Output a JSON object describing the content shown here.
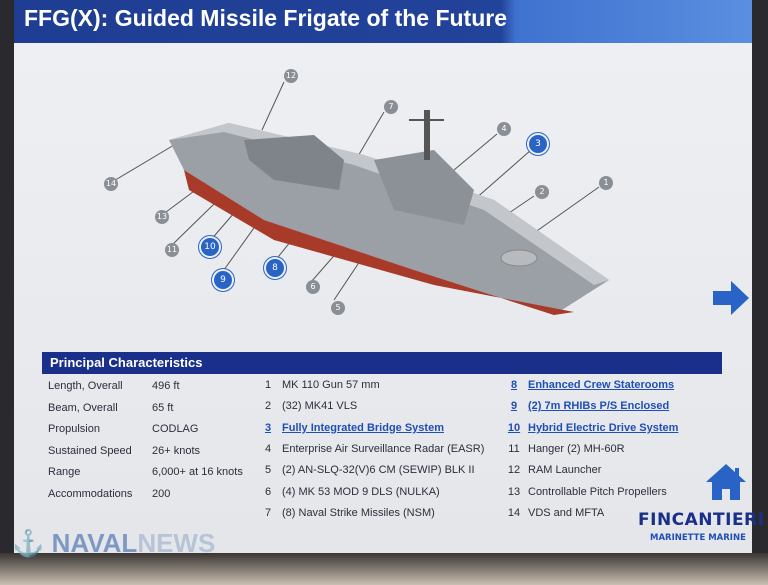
{
  "title": "FFG(X): Guided Missile Frigate of the Future",
  "callouts": [
    {
      "n": "12",
      "style": "gray"
    },
    {
      "n": "7",
      "style": "gray"
    },
    {
      "n": "4",
      "style": "gray"
    },
    {
      "n": "3",
      "style": "blue"
    },
    {
      "n": "2",
      "style": "gray"
    },
    {
      "n": "1",
      "style": "gray"
    },
    {
      "n": "14",
      "style": "gray"
    },
    {
      "n": "13",
      "style": "gray"
    },
    {
      "n": "11",
      "style": "gray"
    },
    {
      "n": "10",
      "style": "blue"
    },
    {
      "n": "9",
      "style": "blue"
    },
    {
      "n": "8",
      "style": "blue"
    },
    {
      "n": "6",
      "style": "gray"
    },
    {
      "n": "5",
      "style": "gray"
    }
  ],
  "characteristics": {
    "header": "Principal Characteristics",
    "specs": [
      {
        "label": "Length, Overall",
        "value": "496 ft"
      },
      {
        "label": "Beam, Overall",
        "value": "65 ft"
      },
      {
        "label": "Propulsion",
        "value": "CODLAG"
      },
      {
        "label": "Sustained Speed",
        "value": "26+ knots"
      },
      {
        "label": "Range",
        "value": "6,000+ at 16 knots"
      },
      {
        "label": "Accommodations",
        "value": "200"
      }
    ],
    "items": [
      {
        "n": "1",
        "text": "MK 110 Gun 57 mm",
        "link": false
      },
      {
        "n": "2",
        "text": "(32) MK41 VLS",
        "link": false
      },
      {
        "n": "3",
        "text": "Fully Integrated Bridge System",
        "link": true
      },
      {
        "n": "4",
        "text": "Enterprise Air Surveillance Radar (EASR)",
        "link": false
      },
      {
        "n": "5",
        "text": "(2) AN-SLQ-32(V)6 CM (SEWIP) BLK II",
        "link": false
      },
      {
        "n": "6",
        "text": "(4) MK 53 MOD 9 DLS (NULKA)",
        "link": false
      },
      {
        "n": "7",
        "text": "(8) Naval Strike Missiles (NSM)",
        "link": false
      },
      {
        "n": "8",
        "text": "Enhanced Crew Staterooms",
        "link": true
      },
      {
        "n": "9",
        "text": "(2) 7m RHIBs P/S Enclosed",
        "link": true
      },
      {
        "n": "10",
        "text": "Hybrid Electric Drive System",
        "link": true
      },
      {
        "n": "11",
        "text": "Hanger (2) MH-60R",
        "link": false
      },
      {
        "n": "12",
        "text": "RAM Launcher",
        "link": false
      },
      {
        "n": "13",
        "text": "Controllable Pitch Propellers",
        "link": false
      },
      {
        "n": "14",
        "text": "VDS and MFTA",
        "link": false
      }
    ]
  },
  "nav": {
    "next_icon": "arrow-right-icon",
    "home_icon": "home-icon"
  },
  "brand": {
    "name": "FINCANTIERI",
    "sub": "MARINETTE MARINE"
  },
  "watermark": {
    "a": "NAVAL",
    "b": "NEWS"
  },
  "colors": {
    "title_bar": "#1e3d93",
    "link": "#1f4fb5",
    "callout_blue": "#2a63c6"
  }
}
